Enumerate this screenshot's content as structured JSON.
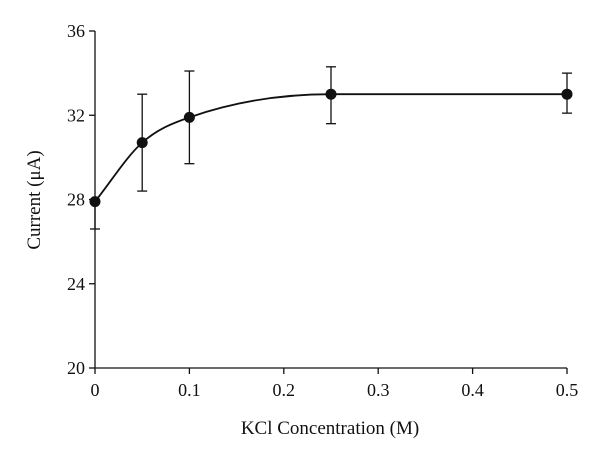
{
  "chart_data": {
    "type": "line",
    "title": "",
    "xlabel": "KCl Concentration (M)",
    "ylabel": "Current (μA)",
    "xlim": [
      0,
      0.5
    ],
    "ylim": [
      20,
      36
    ],
    "x_ticks": [
      0,
      0.1,
      0.2,
      0.3,
      0.4,
      0.5
    ],
    "x_tick_labels": [
      "0",
      "0.1",
      "0.2",
      "0.3",
      "0.4",
      "0.5"
    ],
    "y_ticks": [
      20,
      24,
      28,
      32,
      36
    ],
    "y_tick_labels": [
      "20",
      "24",
      "28",
      "32",
      "36"
    ],
    "grid": false,
    "series": [
      {
        "x": [
          0,
          0.05,
          0.1,
          0.25,
          0.5
        ],
        "values": [
          27.9,
          30.7,
          31.9,
          33.0,
          33.0
        ],
        "err_low": [
          26.6,
          28.4,
          29.7,
          31.6,
          32.1
        ],
        "err_high": [
          28.0,
          33.0,
          34.1,
          34.3,
          34.0
        ],
        "color": "#111111",
        "marker": "filled-circle",
        "smooth": true
      }
    ]
  }
}
